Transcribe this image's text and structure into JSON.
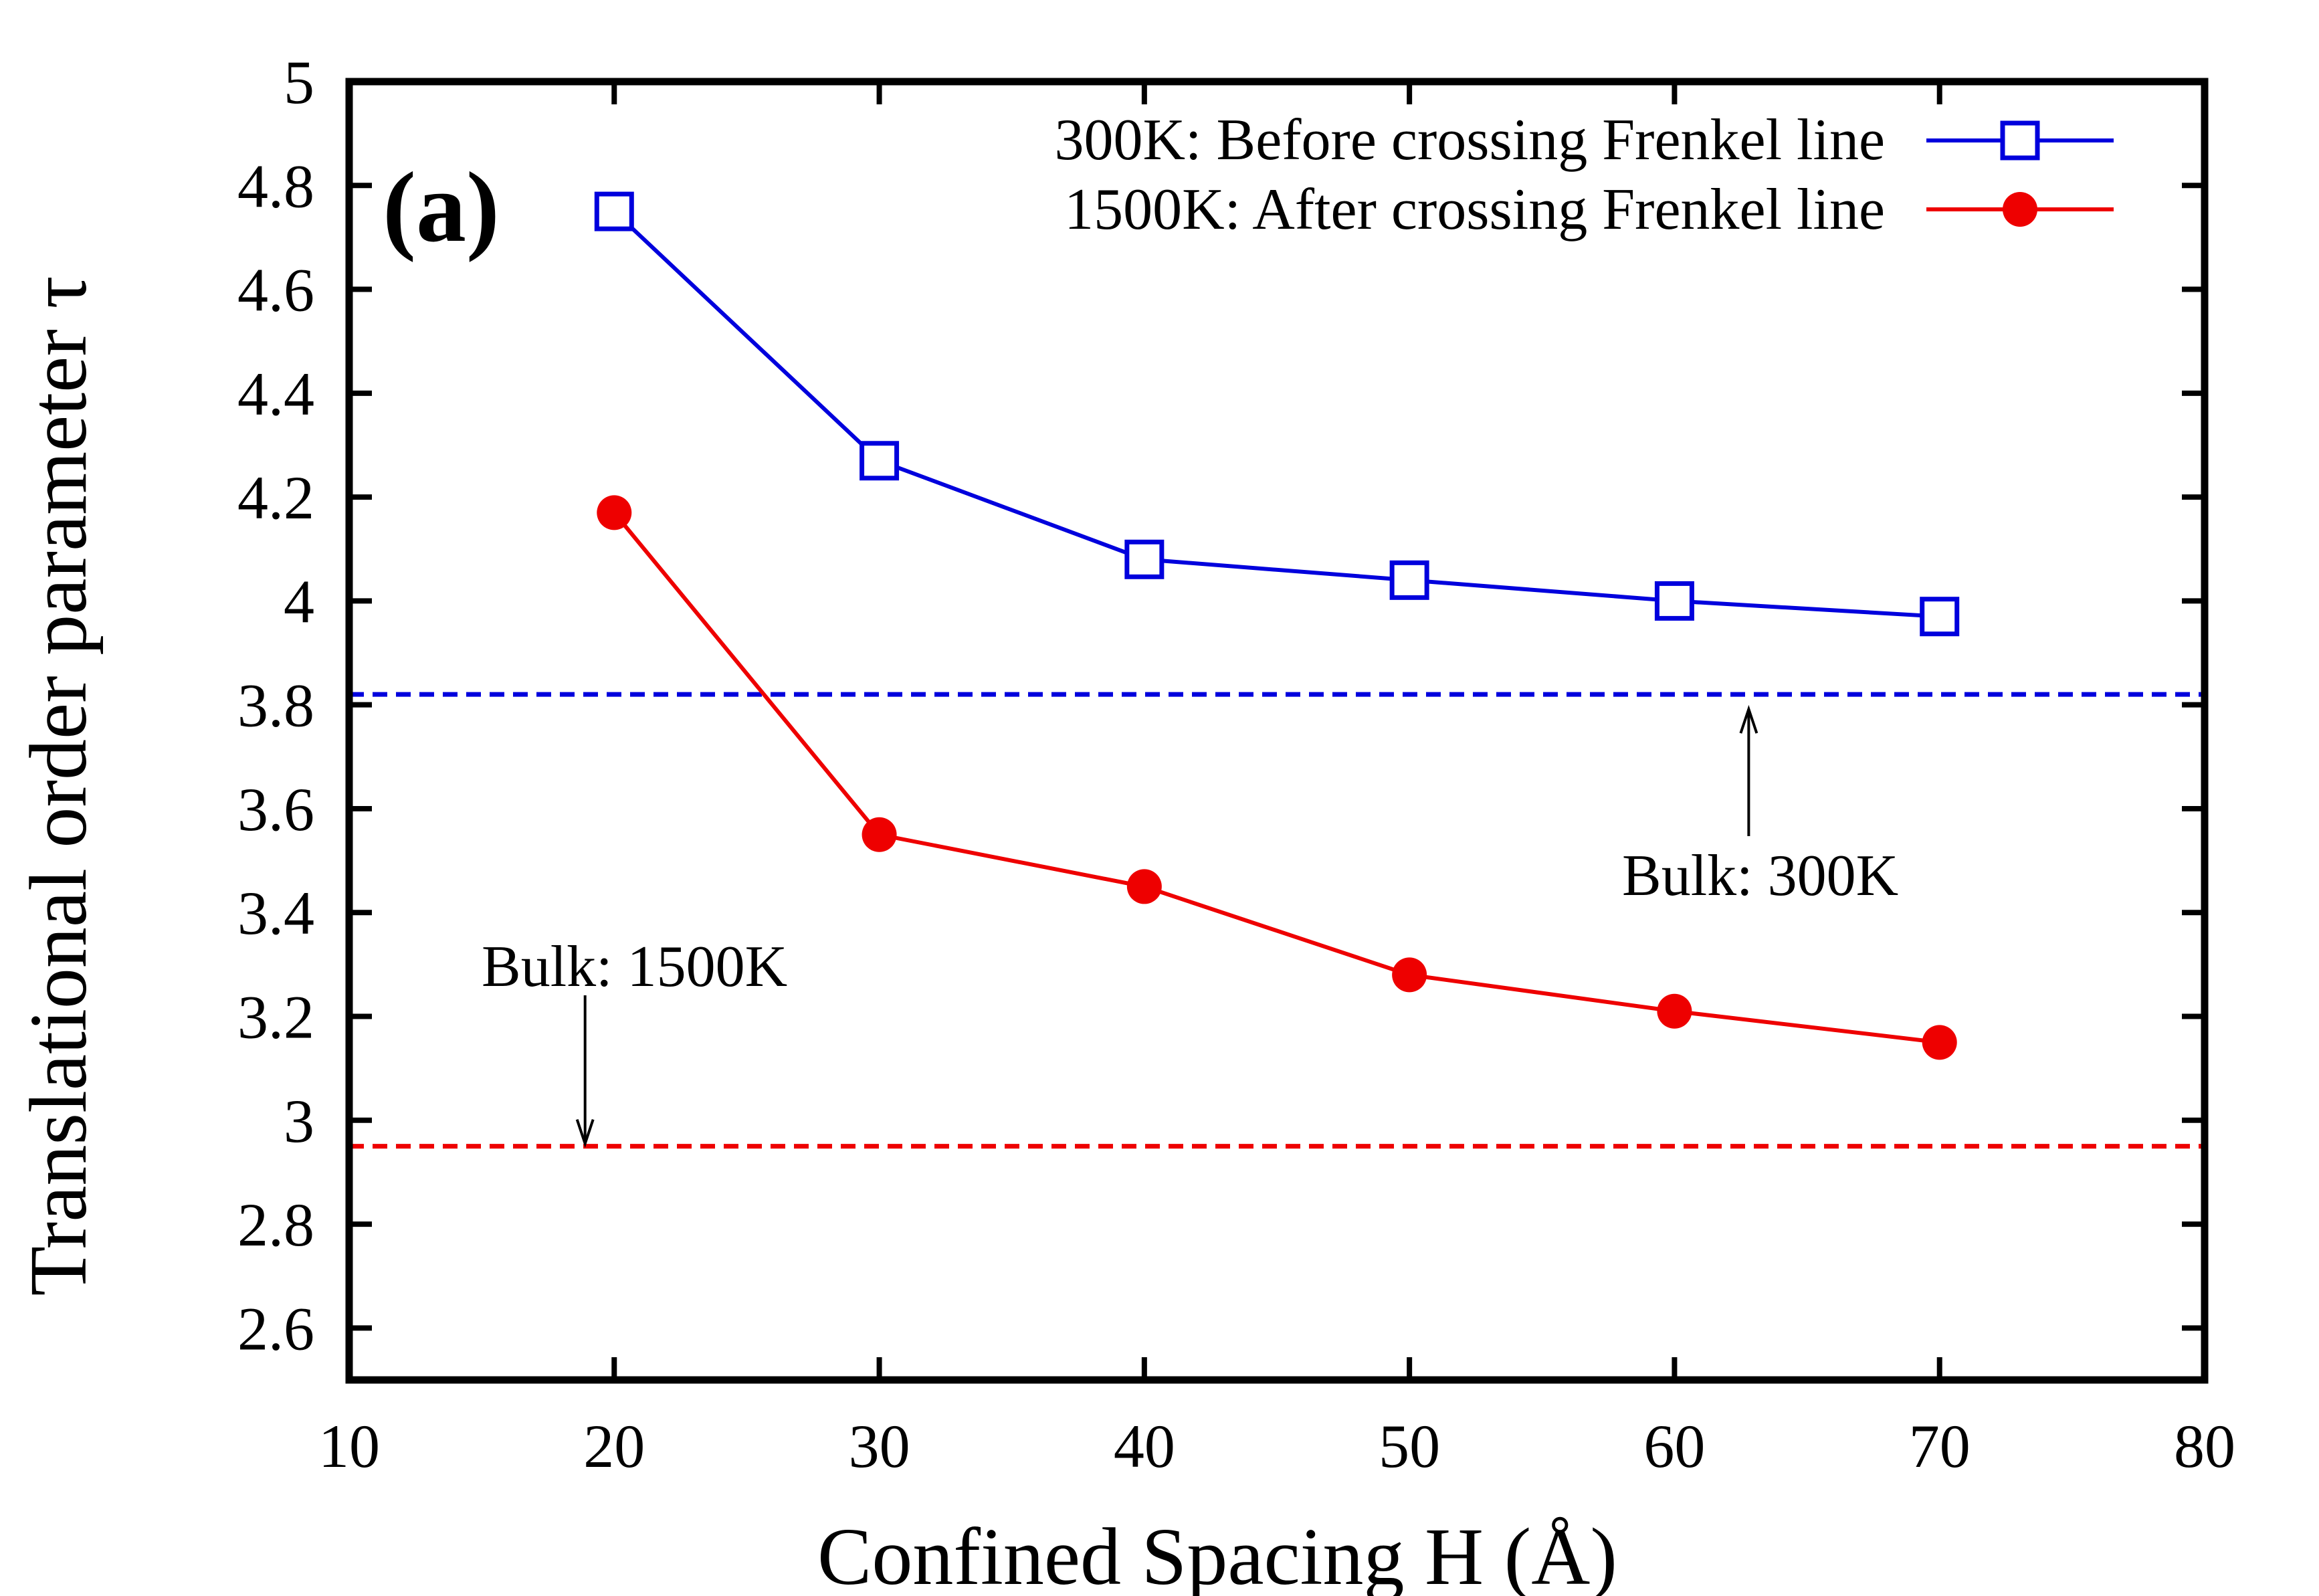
{
  "chart_data": {
    "type": "line",
    "panel_label": "(a)",
    "xlabel": "Confined Spacing H (Å)",
    "ylabel": "Translational order parameter τ",
    "xlim": [
      10,
      80
    ],
    "ylim": [
      2.5,
      5
    ],
    "x_ticks": [
      10,
      20,
      30,
      40,
      50,
      60,
      70,
      80
    ],
    "x_tick_labels": [
      "10",
      "20",
      "30",
      "40",
      "50",
      "60",
      "70",
      "80"
    ],
    "y_ticks": [
      2.6,
      2.8,
      3.0,
      3.2,
      3.4,
      3.6,
      3.8,
      4.0,
      4.2,
      4.4,
      4.6,
      4.8,
      5.0
    ],
    "y_tick_labels": [
      "2.6",
      "2.8",
      "3",
      "3.2",
      "3.4",
      "3.6",
      "3.8",
      "4",
      "4.2",
      "4.4",
      "4.6",
      "4.8",
      "5"
    ],
    "grid": false,
    "legend_position": "top-right",
    "series": [
      {
        "name": "300K: Before crossing Frenkel line",
        "color": "#0000dd",
        "marker": "open-square",
        "x": [
          20,
          30,
          40,
          50,
          60,
          70
        ],
        "y": [
          4.75,
          4.27,
          4.08,
          4.04,
          4.0,
          3.97
        ]
      },
      {
        "name": "1500K: After crossing Frenkel line",
        "color": "#ee0000",
        "marker": "filled-circle",
        "x": [
          20,
          30,
          40,
          50,
          60,
          70
        ],
        "y": [
          4.17,
          3.55,
          3.45,
          3.28,
          3.21,
          3.15
        ]
      }
    ],
    "reference_lines": [
      {
        "name": "Bulk: 300K",
        "y": 3.82,
        "color": "#0000dd",
        "style": "dashed"
      },
      {
        "name": "Bulk: 1500K",
        "y": 2.95,
        "color": "#ee0000",
        "style": "dashed"
      }
    ],
    "annotations": [
      {
        "text": "Bulk: 300K",
        "points_to": "Bulk: 300K",
        "arrow_x": 62.8,
        "direction": "up"
      },
      {
        "text": "Bulk: 1500K",
        "points_to": "Bulk: 1500K",
        "arrow_x": 18.9,
        "direction": "down"
      }
    ]
  }
}
